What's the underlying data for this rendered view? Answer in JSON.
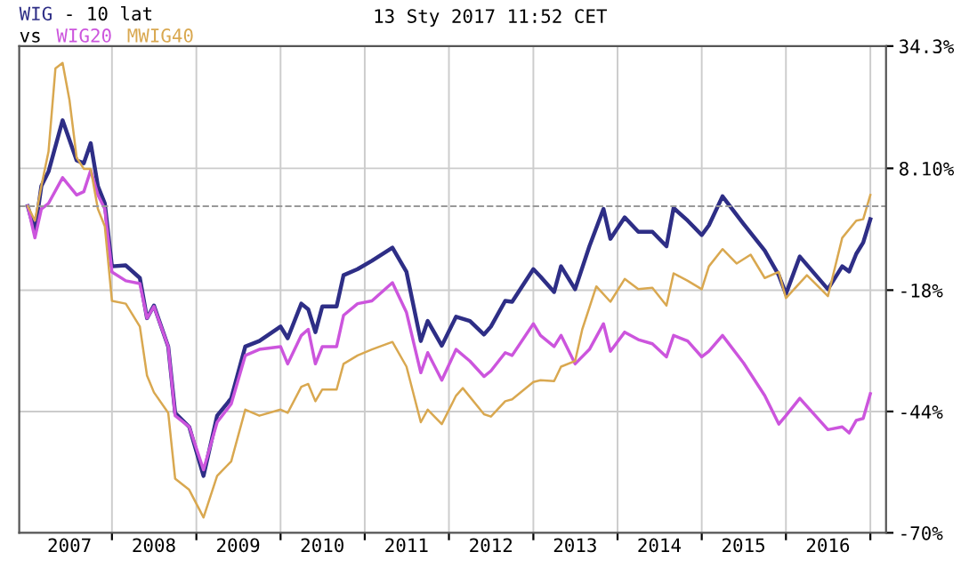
{
  "chart_data": {
    "type": "line",
    "title": "- 10 lat",
    "subtitle": "13 Sty 2017 11:52 CET",
    "legend_title": "vs",
    "legend": "top left",
    "grid": true,
    "ylim": [
      -70,
      34.3
    ],
    "yticks": [
      {
        "value": 34.3,
        "label": "34.3%"
      },
      {
        "value": 8.1,
        "label": "8.10%"
      },
      {
        "value": -18,
        "label": "-18%"
      },
      {
        "value": -44,
        "label": "-44%"
      },
      {
        "value": -70,
        "label": "-70%"
      }
    ],
    "xlim": [
      "2006-11-25",
      "2017-03-10"
    ],
    "xticks": [
      {
        "value": "2007-07-01",
        "label": "2007"
      },
      {
        "value": "2008-01-01",
        "label": null
      },
      {
        "value": "2008-07-01",
        "label": "2008"
      },
      {
        "value": "2009-01-01",
        "label": null
      },
      {
        "value": "2009-07-01",
        "label": "2009"
      },
      {
        "value": "2010-01-01",
        "label": null
      },
      {
        "value": "2010-07-01",
        "label": "2010"
      },
      {
        "value": "2011-01-01",
        "label": null
      },
      {
        "value": "2011-07-01",
        "label": "2011"
      },
      {
        "value": "2012-01-01",
        "label": null
      },
      {
        "value": "2012-07-01",
        "label": "2012"
      },
      {
        "value": "2013-01-01",
        "label": null
      },
      {
        "value": "2013-07-01",
        "label": "2013"
      },
      {
        "value": "2014-01-01",
        "label": null
      },
      {
        "value": "2014-07-01",
        "label": "2014"
      },
      {
        "value": "2015-01-01",
        "label": null
      },
      {
        "value": "2015-07-01",
        "label": "2015"
      },
      {
        "value": "2016-01-01",
        "label": null
      },
      {
        "value": "2016-07-01",
        "label": "2016"
      },
      {
        "value": "2017-01-01",
        "label": null
      }
    ],
    "ref_lines": [
      {
        "axis": "y",
        "value": 0,
        "color": "#999999",
        "line_style": "dashed"
      }
    ],
    "x": [
      "2007-01",
      "2007-02",
      "2007-03",
      "2007-04",
      "2007-06",
      "2007-08",
      "2007-09",
      "2007-10",
      "2007-11",
      "2007-12",
      "2008-01",
      "2008-03",
      "2008-05",
      "2008-06",
      "2008-07",
      "2008-09",
      "2008-10",
      "2008-12",
      "2009-02",
      "2009-04",
      "2009-06",
      "2009-08",
      "2009-10",
      "2010-01",
      "2010-02",
      "2010-04",
      "2010-05",
      "2010-06",
      "2010-07",
      "2010-09",
      "2010-10",
      "2010-12",
      "2011-02",
      "2011-05",
      "2011-07",
      "2011-09",
      "2011-10",
      "2011-12",
      "2012-02",
      "2012-04",
      "2012-06",
      "2012-07",
      "2012-09",
      "2012-10",
      "2013-01",
      "2013-02",
      "2013-04",
      "2013-05",
      "2013-07",
      "2013-09",
      "2013-11",
      "2013-12",
      "2014-02",
      "2014-04",
      "2014-06",
      "2014-08",
      "2014-09",
      "2014-11",
      "2015-01",
      "2015-02",
      "2015-04",
      "2015-07",
      "2015-10",
      "2015-12",
      "2016-01",
      "2016-03",
      "2016-07",
      "2016-09",
      "2016-10",
      "2016-11",
      "2016-12",
      "2017-01"
    ],
    "series": [
      {
        "name": "WIG",
        "color": "#2e2e86",
        "values": [
          0,
          -5.5,
          4.3,
          7.4,
          18.4,
          9.8,
          9.2,
          13.5,
          4.3,
          0.6,
          -12.9,
          -12.7,
          -15.4,
          -24.0,
          -21.3,
          -30.1,
          -44.3,
          -47.3,
          -57.8,
          -44.9,
          -41.2,
          -30.1,
          -28.9,
          -25.8,
          -28.3,
          -20.9,
          -22.1,
          -27.0,
          -21.5,
          -21.5,
          -14.8,
          -13.5,
          -11.7,
          -8.9,
          -14.1,
          -28.9,
          -24.6,
          -29.9,
          -23.7,
          -24.6,
          -27.5,
          -25.8,
          -20.3,
          -20.5,
          -13.5,
          -15.1,
          -18.4,
          -12.9,
          -17.8,
          -8.6,
          -0.6,
          -7.0,
          -2.4,
          -5.5,
          -5.5,
          -8.6,
          -0.4,
          -3.1,
          -6.2,
          -4.1,
          2.1,
          -3.8,
          -9.5,
          -14.8,
          -18.8,
          -10.8,
          -17.8,
          -12.9,
          -14.0,
          -10.2,
          -7.8,
          -2.8
        ]
      },
      {
        "name": "WIG20",
        "color": "#cc55dd",
        "values": [
          0,
          -6.8,
          -0.6,
          0.6,
          6.1,
          2.4,
          3.1,
          7.7,
          2.4,
          -0.6,
          -14.1,
          -16.0,
          -16.6,
          -24.0,
          -21.5,
          -30.1,
          -44.9,
          -47.3,
          -56.5,
          -46.3,
          -42.4,
          -32.0,
          -30.7,
          -30.1,
          -33.8,
          -27.7,
          -26.4,
          -33.8,
          -30.1,
          -30.1,
          -23.4,
          -20.9,
          -20.3,
          -16.4,
          -22.8,
          -35.7,
          -31.4,
          -37.3,
          -30.7,
          -33.2,
          -36.5,
          -35.3,
          -31.4,
          -32.0,
          -25.2,
          -27.7,
          -30.1,
          -27.7,
          -33.8,
          -30.7,
          -25.2,
          -31.1,
          -27.0,
          -28.6,
          -29.5,
          -32.3,
          -27.7,
          -28.9,
          -32.3,
          -31.1,
          -27.7,
          -33.6,
          -40.6,
          -46.7,
          -44.9,
          -41.2,
          -47.9,
          -47.3,
          -48.6,
          -45.9,
          -45.5,
          -40.2
        ]
      },
      {
        "name": "MWIG40",
        "color": "#d9a850",
        "x": [
          "2007-01",
          "2007-02",
          "2007-03",
          "2007-04",
          "2007-05",
          "2007-06",
          "2007-07",
          "2007-08",
          "2007-09",
          "2007-10",
          "2007-11",
          "2007-12",
          "2008-01",
          "2008-03",
          "2008-05",
          "2008-06",
          "2008-07",
          "2008-09",
          "2008-10",
          "2008-12",
          "2009-02",
          "2009-04",
          "2009-06",
          "2009-08",
          "2009-10",
          "2010-01",
          "2010-02",
          "2010-04",
          "2010-05",
          "2010-06",
          "2010-07",
          "2010-09",
          "2010-10",
          "2010-12",
          "2011-02",
          "2011-05",
          "2011-07",
          "2011-09",
          "2011-10",
          "2011-12",
          "2012-02",
          "2012-03",
          "2012-06",
          "2012-07",
          "2012-09",
          "2012-10",
          "2013-01",
          "2013-02",
          "2013-04",
          "2013-05",
          "2013-07",
          "2013-08",
          "2013-10",
          "2013-12",
          "2014-02",
          "2014-04",
          "2014-06",
          "2014-08",
          "2014-09",
          "2014-11",
          "2015-01",
          "2015-02",
          "2015-04",
          "2015-06",
          "2015-08",
          "2015-10",
          "2015-12",
          "2016-01",
          "2016-04",
          "2016-07",
          "2016-09",
          "2016-11",
          "2016-12",
          "2017-01"
        ],
        "values": [
          0,
          -3.1,
          4.3,
          11.7,
          29.5,
          30.7,
          22.7,
          10.4,
          8.0,
          8.0,
          -0.6,
          -4.3,
          -20.3,
          -20.9,
          -25.8,
          -36.3,
          -39.9,
          -44.3,
          -58.4,
          -60.8,
          -66.7,
          -57.8,
          -54.7,
          -43.6,
          -44.9,
          -43.6,
          -44.3,
          -38.7,
          -38.1,
          -41.8,
          -39.3,
          -39.3,
          -33.8,
          -32.0,
          -30.7,
          -29.1,
          -34.4,
          -46.3,
          -43.6,
          -46.7,
          -40.6,
          -39.0,
          -44.6,
          -45.1,
          -41.8,
          -41.4,
          -37.7,
          -37.3,
          -37.5,
          -34.4,
          -33.2,
          -26.4,
          -17.2,
          -20.5,
          -15.6,
          -17.8,
          -17.5,
          -21.3,
          -14.4,
          -16.0,
          -17.8,
          -12.9,
          -9.2,
          -12.3,
          -10.4,
          -15.4,
          -14.1,
          -19.7,
          -14.8,
          -19.3,
          -6.8,
          -3.1,
          -2.8,
          2.4
        ]
      }
    ]
  }
}
